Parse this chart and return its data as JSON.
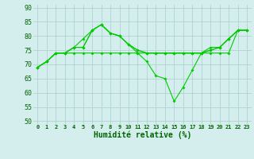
{
  "xlabel": "Humidité relative (%)",
  "x": [
    0,
    1,
    2,
    3,
    4,
    5,
    6,
    7,
    8,
    9,
    10,
    11,
    12,
    13,
    14,
    15,
    16,
    17,
    18,
    19,
    20,
    21,
    22,
    23
  ],
  "line1": [
    69,
    71,
    74,
    74,
    76,
    76,
    82,
    84,
    81,
    80,
    77,
    75,
    74,
    74,
    74,
    74,
    74,
    74,
    74,
    75,
    76,
    79,
    82,
    82
  ],
  "line2": [
    69,
    71,
    74,
    74,
    76,
    76,
    82,
    84,
    81,
    80,
    77,
    75,
    74,
    74,
    74,
    74,
    74,
    74,
    74,
    75,
    76,
    79,
    82,
    82
  ],
  "line3": [
    69,
    71,
    74,
    74,
    76,
    79,
    82,
    84,
    81,
    80,
    77,
    74,
    71,
    66,
    65,
    57,
    62,
    68,
    74,
    76,
    76,
    79,
    82,
    82
  ],
  "line4": [
    69,
    71,
    74,
    74,
    74,
    74,
    74,
    74,
    74,
    74,
    74,
    74,
    74,
    74,
    74,
    74,
    74,
    74,
    74,
    74,
    74,
    74,
    82,
    82
  ],
  "ylim": [
    49,
    91
  ],
  "yticks": [
    50,
    55,
    60,
    65,
    70,
    75,
    80,
    85,
    90
  ],
  "line_color": "#00cc00",
  "bg_color": "#d4eeed",
  "grid_color": "#aacccc",
  "tick_color": "#006600"
}
